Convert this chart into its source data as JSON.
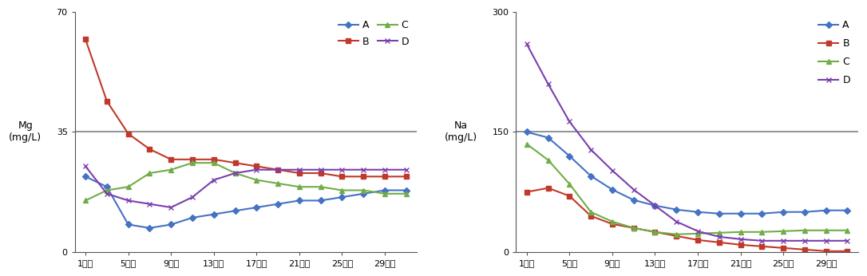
{
  "x_days": [
    1,
    3,
    5,
    7,
    9,
    11,
    13,
    15,
    17,
    19,
    21,
    23,
    25,
    27,
    29,
    31
  ],
  "x_ticks_days": [
    1,
    5,
    9,
    13,
    17,
    21,
    25,
    29
  ],
  "x_ticks_labels": [
    "1일차",
    "5일차",
    "9일차",
    "13일차",
    "17일차",
    "21일차",
    "25일차",
    "29일차"
  ],
  "mg": {
    "A": [
      22,
      19,
      8,
      7,
      8,
      10,
      11,
      12,
      13,
      14,
      15,
      15,
      16,
      17,
      18,
      18
    ],
    "B": [
      62,
      44,
      34.5,
      30,
      27,
      27,
      27,
      26,
      25,
      24,
      23,
      23,
      22,
      22,
      22,
      22
    ],
    "C": [
      15,
      18,
      19,
      23,
      24,
      26,
      26,
      23,
      21,
      20,
      19,
      19,
      18,
      18,
      17,
      17
    ],
    "D": [
      25,
      17,
      15,
      14,
      13,
      16,
      21,
      23,
      24,
      24,
      24,
      24,
      24,
      24,
      24,
      24
    ]
  },
  "na": {
    "A": [
      150,
      143,
      120,
      95,
      78,
      65,
      58,
      53,
      50,
      48,
      48,
      48,
      50,
      50,
      52,
      52
    ],
    "B": [
      75,
      80,
      70,
      45,
      35,
      30,
      25,
      20,
      15,
      12,
      9,
      7,
      5,
      3,
      1,
      1
    ],
    "C": [
      135,
      115,
      85,
      50,
      38,
      30,
      25,
      22,
      23,
      24,
      25,
      25,
      26,
      27,
      27,
      27
    ],
    "D": [
      260,
      210,
      163,
      128,
      102,
      78,
      58,
      38,
      26,
      19,
      16,
      14,
      14,
      14,
      14,
      14
    ]
  },
  "mg_ylim": [
    0,
    70
  ],
  "na_ylim": [
    0,
    300
  ],
  "mg_yticks": [
    0,
    35,
    70
  ],
  "na_yticks": [
    0,
    150,
    300
  ],
  "mg_hline": 35,
  "na_hline": 150,
  "colors": {
    "A": "#4472C4",
    "B": "#C0392B",
    "C": "#70AD47",
    "D": "#7B3FAE"
  },
  "markers": {
    "A": "D",
    "B": "s",
    "C": "^",
    "D": "x"
  },
  "mg_ylabel": "Mg\n(mg/L)",
  "na_ylabel": "Na\n(mg/L)",
  "background_color": "#FFFFFF",
  "hline_color": "#808080",
  "spine_color": "#555555"
}
